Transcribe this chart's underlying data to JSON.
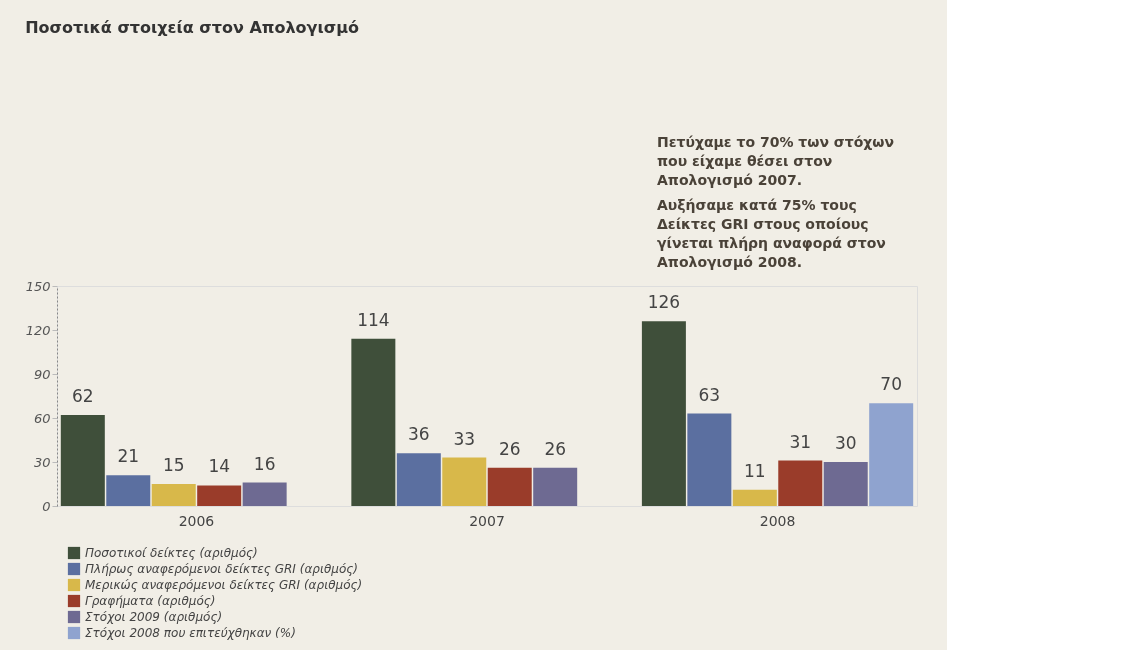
{
  "chart_data": {
    "type": "bar",
    "title": "Ποσοτικά στοιχεία στον Απολογισμό",
    "categories": [
      "2006",
      "2007",
      "2008"
    ],
    "series": [
      {
        "name": "Ποσοτικοί δείκτες (αριθμός)",
        "color": "#3f4f3a",
        "values": [
          62,
          114,
          126
        ]
      },
      {
        "name": "Πλήρως αναφερόμενοι δείκτες GRI (αριθμός)",
        "color": "#5b6fa0",
        "values": [
          21,
          36,
          63
        ]
      },
      {
        "name": "Μερικώς αναφερόμενοι δείκτες GRI (αριθμός)",
        "color": "#d8b84a",
        "values": [
          15,
          33,
          11
        ]
      },
      {
        "name": "Γραφήματα (αριθμός)",
        "color": "#9a3c2a",
        "values": [
          14,
          26,
          31
        ]
      },
      {
        "name": "Στόχοι 2009 (αριθμός)",
        "color": "#6e6a92",
        "values": [
          16,
          26,
          30
        ]
      },
      {
        "name": "Στόχοι 2008 που επιτεύχθηκαν (%)",
        "color": "#8fa3cf",
        "values": [
          null,
          null,
          70
        ]
      }
    ],
    "ylim": [
      0,
      150
    ],
    "yticks": [
      0,
      30,
      60,
      90,
      120,
      150
    ],
    "data_labels": true,
    "grid": false,
    "legend": "bottom left",
    "annotations": [
      "Πετύχαμε το 70% των στόχων που είχαμε θέσει στον Απολογισμό 2007.",
      "Αυξήσαμε κατά 75% τους Δείκτες GRI στους οποίους γίνεται πλήρη αναφορά στον Απολογισμό 2008."
    ]
  }
}
